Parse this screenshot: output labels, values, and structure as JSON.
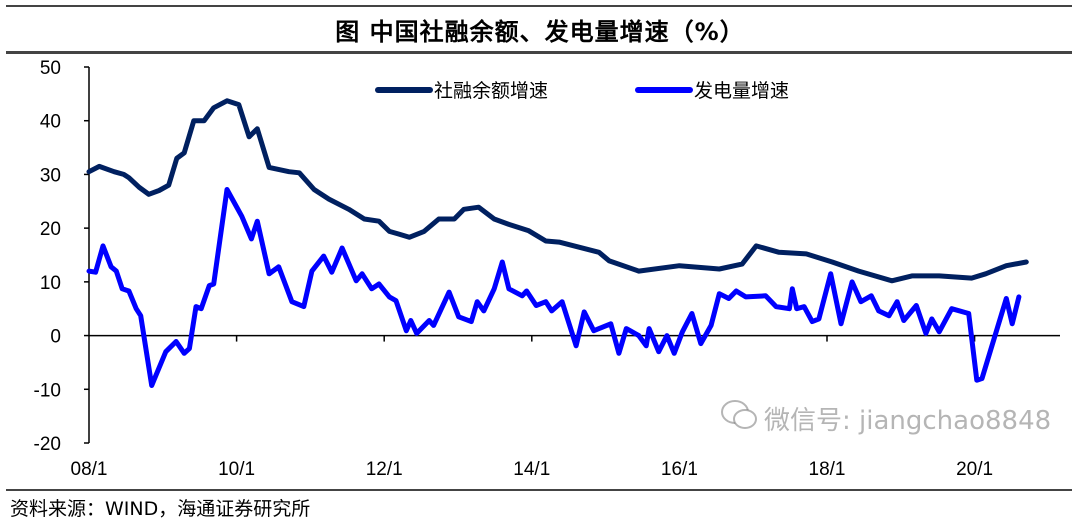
{
  "title": "图 中国社融余额、发电量增速（%）",
  "source": "资料来源：WIND，海通证券研究所",
  "watermark": "微信号: jiangchao8848",
  "chart_data": {
    "type": "line",
    "title": "图 中国社融余额、发电量增速（%）",
    "xlabel": "",
    "ylabel": "",
    "ylim": [
      -20,
      50
    ],
    "yticks": [
      50,
      40,
      30,
      20,
      10,
      0,
      -10,
      -20
    ],
    "xlim": [
      2008.0,
      2021.0
    ],
    "xticks": [
      {
        "value": 2008,
        "label": "08/1"
      },
      {
        "value": 2010,
        "label": "10/1"
      },
      {
        "value": 2012,
        "label": "12/1"
      },
      {
        "value": 2014,
        "label": "14/1"
      },
      {
        "value": 2016,
        "label": "16/1"
      },
      {
        "value": 2018,
        "label": "18/1"
      },
      {
        "value": 2020,
        "label": "20/1"
      }
    ],
    "grid": false,
    "legend": "top",
    "series": [
      {
        "name": "社融余额增速",
        "color": "#002060",
        "x": [
          2008.0,
          2008.14,
          2008.34,
          2008.47,
          2008.54,
          2008.68,
          2008.81,
          2008.95,
          2009.08,
          2009.19,
          2009.29,
          2009.42,
          2009.56,
          2009.69,
          2009.87,
          2010.03,
          2010.17,
          2010.28,
          2010.44,
          2010.71,
          2010.85,
          2011.05,
          2011.25,
          2011.52,
          2011.73,
          2011.93,
          2012.07,
          2012.2,
          2012.34,
          2012.54,
          2012.74,
          2012.95,
          2013.08,
          2013.28,
          2013.49,
          2013.69,
          2013.96,
          2014.19,
          2014.37,
          2014.91,
          2015.05,
          2015.45,
          2016.0,
          2016.54,
          2016.85,
          2017.04,
          2017.35,
          2017.72,
          2018.07,
          2018.43,
          2018.88,
          2019.15,
          2019.52,
          2019.96,
          2020.15,
          2020.43,
          2020.7
        ],
        "y": [
          30.5,
          31.5,
          30.5,
          30,
          29.4,
          27.6,
          26.3,
          27,
          28,
          33,
          34,
          40,
          40,
          42.4,
          43.7,
          43,
          37,
          38.5,
          31.3,
          30.5,
          30.3,
          27.2,
          25.4,
          23.5,
          21.7,
          21.3,
          19.4,
          18.9,
          18.3,
          19.4,
          21.7,
          21.7,
          23.5,
          23.9,
          21.7,
          20.7,
          19.5,
          17.6,
          17.4,
          15.5,
          13.9,
          12.0,
          13.0,
          12.4,
          13.3,
          16.7,
          15.5,
          15.2,
          13.7,
          12.0,
          10.2,
          11.1,
          11.1,
          10.7,
          11.5,
          13.0,
          13.7
        ]
      },
      {
        "name": "发电量增速",
        "color": "#0000FF",
        "x": [
          2008.0,
          2008.09,
          2008.19,
          2008.3,
          2008.37,
          2008.45,
          2008.54,
          2008.64,
          2008.7,
          2008.85,
          2009.04,
          2009.18,
          2009.29,
          2009.36,
          2009.45,
          2009.52,
          2009.63,
          2009.69,
          2009.87,
          2010.07,
          2010.2,
          2010.28,
          2010.44,
          2010.57,
          2010.75,
          2010.91,
          2011.02,
          2011.18,
          2011.29,
          2011.43,
          2011.62,
          2011.7,
          2011.83,
          2011.93,
          2012.07,
          2012.16,
          2012.3,
          2012.36,
          2012.44,
          2012.61,
          2012.67,
          2012.88,
          2013.01,
          2013.18,
          2013.26,
          2013.35,
          2013.49,
          2013.6,
          2013.69,
          2013.87,
          2013.93,
          2014.06,
          2014.19,
          2014.27,
          2014.41,
          2014.6,
          2014.71,
          2014.84,
          2015.07,
          2015.18,
          2015.28,
          2015.45,
          2015.55,
          2015.59,
          2015.72,
          2015.83,
          2015.93,
          2016.04,
          2016.17,
          2016.29,
          2016.43,
          2016.54,
          2016.67,
          2016.77,
          2016.9,
          2017.17,
          2017.31,
          2017.49,
          2017.53,
          2017.59,
          2017.69,
          2017.8,
          2017.89,
          2018.05,
          2018.19,
          2018.34,
          2018.46,
          2018.6,
          2018.7,
          2018.84,
          2018.95,
          2019.04,
          2019.21,
          2019.34,
          2019.42,
          2019.52,
          2019.69,
          2019.92,
          2020.03,
          2020.1,
          2020.43,
          2020.51,
          2020.6
        ],
        "y": [
          12,
          11.8,
          16.7,
          12.8,
          12,
          8.7,
          8.3,
          5,
          3.7,
          -9.3,
          -3,
          -1.1,
          -3.3,
          -2.4,
          5.4,
          5,
          9.3,
          9.6,
          27.2,
          22.2,
          18,
          21.3,
          11.5,
          12.8,
          6.3,
          5.4,
          12,
          14.8,
          11.8,
          16.3,
          10.2,
          11.5,
          8.7,
          9.6,
          7.2,
          6.5,
          0.9,
          2.8,
          0.4,
          2.8,
          1.9,
          8.1,
          3.5,
          2.6,
          6.3,
          4.6,
          8.7,
          13.7,
          8.7,
          7.4,
          8.3,
          5.6,
          6.3,
          4.6,
          6.3,
          -1.9,
          4.4,
          0.9,
          2.2,
          -3.3,
          1.3,
          0,
          -1.9,
          1.3,
          -3,
          0,
          -3.3,
          0.7,
          4.1,
          -1.5,
          1.9,
          7.8,
          6.9,
          8.3,
          7.2,
          7.4,
          5.4,
          5,
          8.7,
          5,
          5.4,
          2.6,
          3.1,
          11.5,
          2.2,
          10,
          6.3,
          7.4,
          4.6,
          3.7,
          6.3,
          2.8,
          5.6,
          0.4,
          3.1,
          0.7,
          5,
          4.1,
          -8.3,
          -8,
          6.9,
          2.2,
          7.2
        ]
      }
    ]
  }
}
